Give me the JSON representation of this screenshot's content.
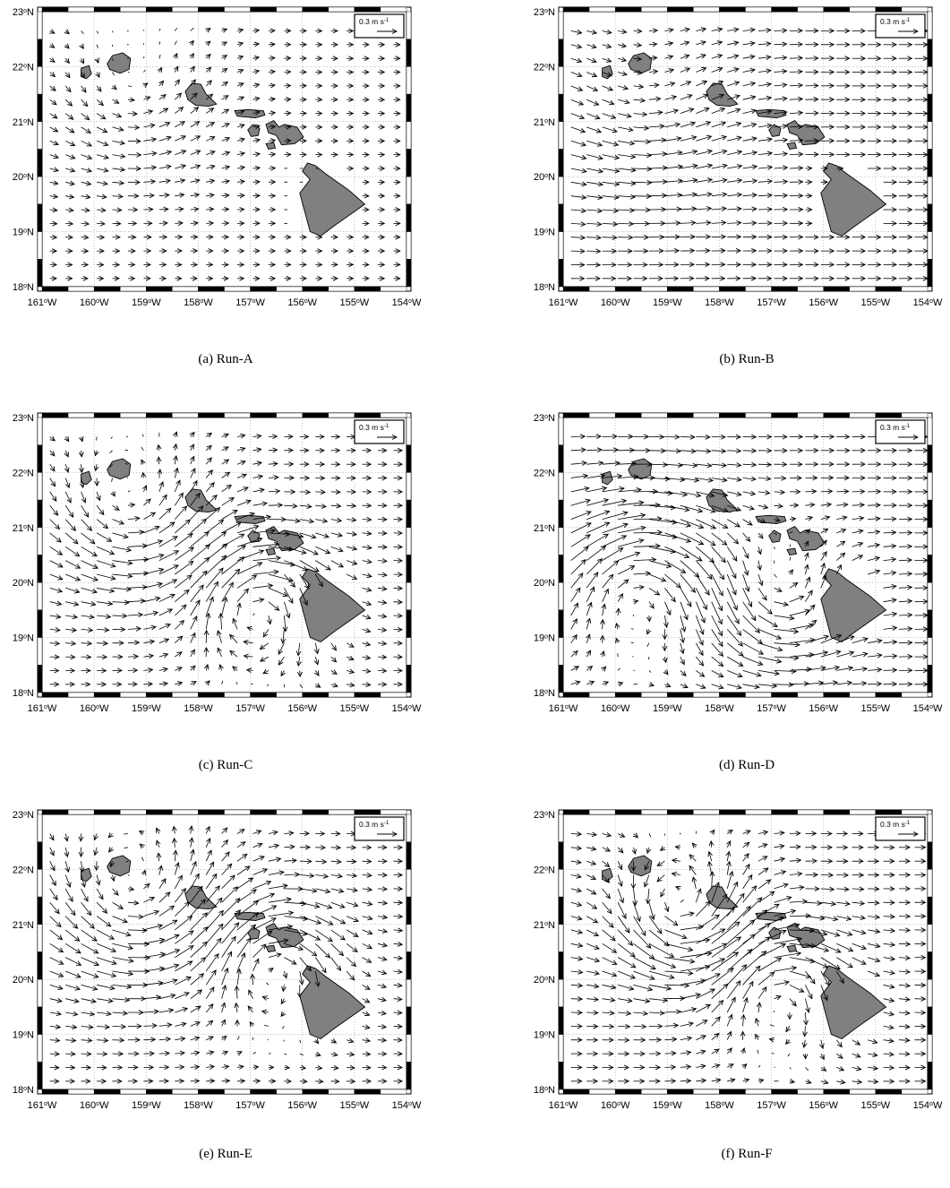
{
  "map": {
    "lat_ticks": [
      {
        "value": 23,
        "deg": "23",
        "hemi": "N"
      },
      {
        "value": 22,
        "deg": "22",
        "hemi": "N"
      },
      {
        "value": 21,
        "deg": "21",
        "hemi": "N"
      },
      {
        "value": 20,
        "deg": "20",
        "hemi": "N"
      },
      {
        "value": 19,
        "deg": "19",
        "hemi": "N"
      },
      {
        "value": 18,
        "deg": "18",
        "hemi": "N"
      }
    ],
    "lon_ticks": [
      {
        "value": -161,
        "deg": "161",
        "hemi": "W"
      },
      {
        "value": -160,
        "deg": "160",
        "hemi": "W"
      },
      {
        "value": -159,
        "deg": "159",
        "hemi": "W"
      },
      {
        "value": -158,
        "deg": "158",
        "hemi": "W"
      },
      {
        "value": -157,
        "deg": "157",
        "hemi": "W"
      },
      {
        "value": -156,
        "deg": "156",
        "hemi": "W"
      },
      {
        "value": -155,
        "deg": "155",
        "hemi": "W"
      },
      {
        "value": -154,
        "deg": "154",
        "hemi": "W"
      }
    ],
    "lon_range": [
      -161,
      -154
    ],
    "lat_range": [
      18,
      23
    ],
    "grid": "dotted",
    "land_color": "#808080",
    "scale_arrow": {
      "magnitude": 0.3,
      "label_prefix": "0.3 m s",
      "label_exp": "-1"
    },
    "islands": [
      {
        "name": "Niihau",
        "lon": -160.12,
        "lat": 21.9
      },
      {
        "name": "Kauai",
        "lon": -159.5,
        "lat": 22.07
      },
      {
        "name": "Oahu",
        "lon": -157.95,
        "lat": 21.47
      },
      {
        "name": "Molokai",
        "lon": -157.0,
        "lat": 21.13
      },
      {
        "name": "Lanai",
        "lon": -156.92,
        "lat": 20.83
      },
      {
        "name": "Maui",
        "lon": -156.25,
        "lat": 20.8
      },
      {
        "name": "Kahoolawe",
        "lon": -156.6,
        "lat": 20.55
      },
      {
        "name": "Hawaii",
        "lon": -155.5,
        "lat": 19.6
      }
    ]
  },
  "panels": [
    {
      "id": "a",
      "caption": "(a) Run-A",
      "field": {
        "background_u": 0.03,
        "background_v": 0.0,
        "eddies": [
          {
            "lon": -159.3,
            "lat": 21.4,
            "strength": 0.05,
            "radius": 1.0
          }
        ]
      }
    },
    {
      "id": "b",
      "caption": "(b) Run-B",
      "field": {
        "background_u": 0.06,
        "background_v": 0.0,
        "eddies": [
          {
            "lon": -159.5,
            "lat": 21.2,
            "strength": 0.04,
            "radius": 1.1
          }
        ]
      }
    },
    {
      "id": "c",
      "caption": "(c) Run-C",
      "field": {
        "background_u": 0.04,
        "background_v": 0.0,
        "eddies": [
          {
            "lon": -159.4,
            "lat": 21.3,
            "strength": 0.09,
            "radius": 1.0
          },
          {
            "lon": -156.9,
            "lat": 19.6,
            "strength": -0.14,
            "radius": 0.8
          }
        ]
      }
    },
    {
      "id": "d",
      "caption": "(d) Run-D",
      "field": {
        "background_u": 0.06,
        "background_v": 0.0,
        "eddies": [
          {
            "lon": -159.6,
            "lat": 20.0,
            "strength": -0.12,
            "radius": 1.0
          },
          {
            "lon": -156.9,
            "lat": 19.7,
            "strength": 0.1,
            "radius": 0.8
          }
        ]
      }
    },
    {
      "id": "e",
      "caption": "(e) Run-E",
      "field": {
        "background_u": 0.04,
        "background_v": 0.0,
        "eddies": [
          {
            "lon": -159.3,
            "lat": 21.5,
            "strength": 0.1,
            "radius": 1.1
          },
          {
            "lon": -156.6,
            "lat": 20.3,
            "strength": -0.12,
            "radius": 0.8
          }
        ]
      }
    },
    {
      "id": "f",
      "caption": "(f) Run-F",
      "field": {
        "background_u": 0.05,
        "background_v": 0.0,
        "eddies": [
          {
            "lon": -158.8,
            "lat": 21.2,
            "strength": 0.15,
            "radius": 0.8
          },
          {
            "lon": -156.9,
            "lat": 19.8,
            "strength": -0.12,
            "radius": 0.8
          }
        ]
      }
    }
  ]
}
